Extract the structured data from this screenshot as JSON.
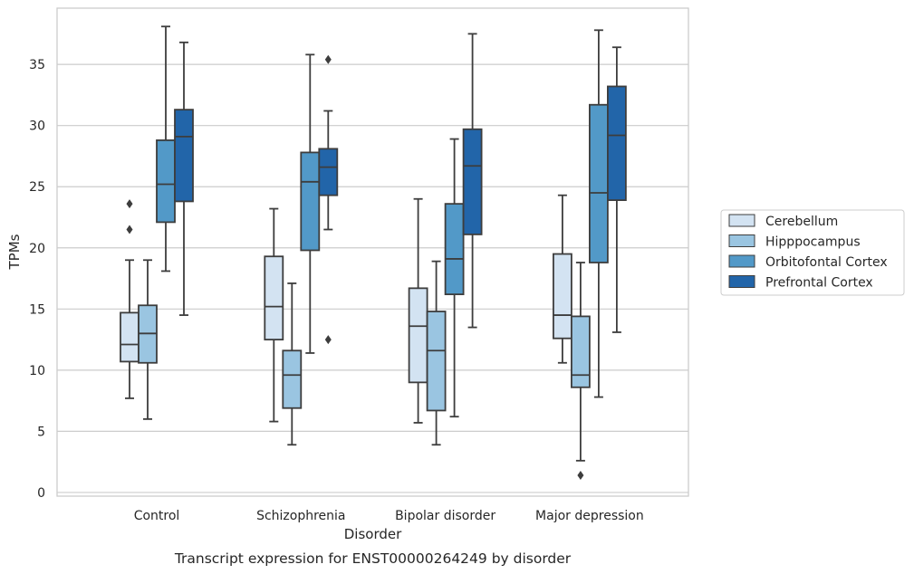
{
  "chart_data": {
    "type": "box",
    "caption": "Transcript expression for ENST00000264249 by disorder",
    "xlabel": "Disorder",
    "ylabel": "TPMs",
    "ylim": [
      -0.3,
      39.6
    ],
    "yticks": [
      0,
      5,
      10,
      15,
      20,
      25,
      30,
      35
    ],
    "grid": "horizontal",
    "legend_position": "right",
    "categories": [
      "Control",
      "Schizophrenia",
      "Bipolar disorder",
      "Major depression"
    ],
    "series": [
      {
        "name": "Cerebellum",
        "color": "#d3e3f2",
        "boxes": [
          {
            "whislo": 7.7,
            "q1": 10.7,
            "med": 12.1,
            "q3": 14.7,
            "whishi": 19.0,
            "fliers": [
              21.5,
              23.6
            ]
          },
          {
            "whislo": 5.8,
            "q1": 12.5,
            "med": 15.2,
            "q3": 19.3,
            "whishi": 23.2,
            "fliers": []
          },
          {
            "whislo": 5.7,
            "q1": 9.0,
            "med": 13.6,
            "q3": 16.7,
            "whishi": 24.0,
            "fliers": []
          },
          {
            "whislo": 10.6,
            "q1": 12.6,
            "med": 14.5,
            "q3": 19.5,
            "whishi": 24.3,
            "fliers": []
          }
        ]
      },
      {
        "name": "Hipppocampus",
        "color": "#9ac5e1",
        "boxes": [
          {
            "whislo": 6.0,
            "q1": 10.6,
            "med": 13.0,
            "q3": 15.3,
            "whishi": 19.0,
            "fliers": []
          },
          {
            "whislo": 3.9,
            "q1": 6.9,
            "med": 9.6,
            "q3": 11.6,
            "whishi": 17.1,
            "fliers": []
          },
          {
            "whislo": 3.9,
            "q1": 6.7,
            "med": 11.6,
            "q3": 14.8,
            "whishi": 18.9,
            "fliers": []
          },
          {
            "whislo": 2.6,
            "q1": 8.6,
            "med": 9.6,
            "q3": 14.4,
            "whishi": 18.8,
            "fliers": [
              1.4
            ]
          }
        ]
      },
      {
        "name": "Orbitofontal Cortex",
        "color": "#5299c8",
        "boxes": [
          {
            "whislo": 18.1,
            "q1": 22.1,
            "med": 25.2,
            "q3": 28.8,
            "whishi": 38.1,
            "fliers": []
          },
          {
            "whislo": 11.4,
            "q1": 19.8,
            "med": 25.4,
            "q3": 27.8,
            "whishi": 35.8,
            "fliers": []
          },
          {
            "whislo": 6.2,
            "q1": 16.2,
            "med": 19.1,
            "q3": 23.6,
            "whishi": 28.9,
            "fliers": []
          },
          {
            "whislo": 7.8,
            "q1": 18.8,
            "med": 24.5,
            "q3": 31.7,
            "whishi": 37.8,
            "fliers": []
          }
        ]
      },
      {
        "name": "Prefrontal Cortex",
        "color": "#2265a9",
        "boxes": [
          {
            "whislo": 14.5,
            "q1": 23.8,
            "med": 29.1,
            "q3": 31.3,
            "whishi": 36.8,
            "fliers": []
          },
          {
            "whislo": 21.5,
            "q1": 24.3,
            "med": 26.6,
            "q3": 28.1,
            "whishi": 31.2,
            "fliers": [
              12.5,
              35.4
            ]
          },
          {
            "whislo": 13.5,
            "q1": 21.1,
            "med": 26.7,
            "q3": 29.7,
            "whishi": 37.5,
            "fliers": []
          },
          {
            "whislo": 13.1,
            "q1": 23.9,
            "med": 29.2,
            "q3": 33.2,
            "whishi": 36.4,
            "fliers": []
          }
        ]
      }
    ]
  }
}
